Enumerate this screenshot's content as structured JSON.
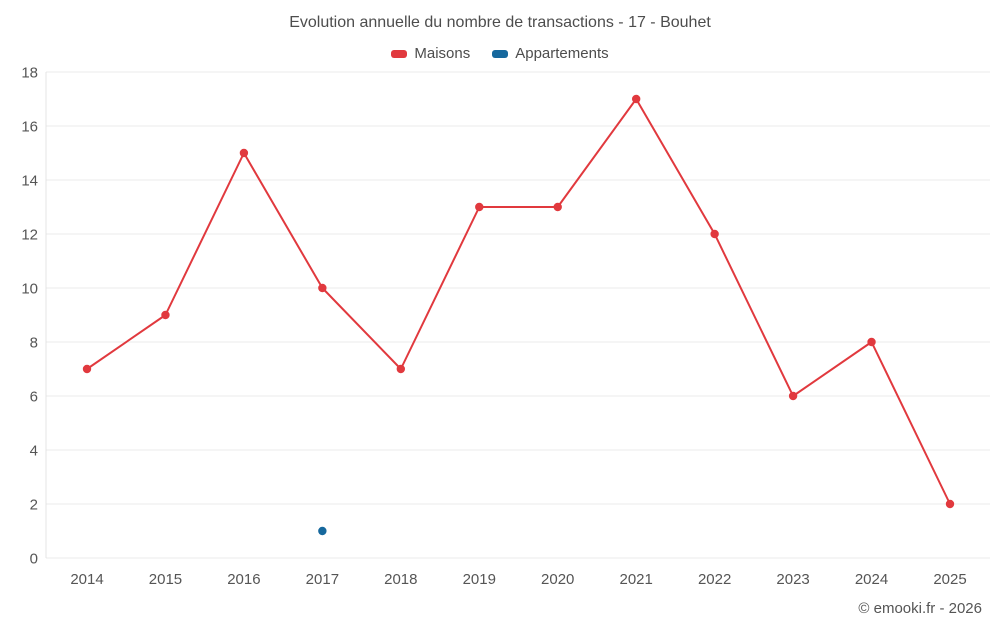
{
  "title": "Evolution annuelle du nombre de transactions - 17 - Bouhet",
  "legend": [
    {
      "label": "Maisons",
      "color": "#e1393e"
    },
    {
      "label": "Appartements",
      "color": "#16689d"
    }
  ],
  "footer": {
    "copyright": "© emooki.fr - 2026"
  },
  "chart_data": {
    "type": "line",
    "title": "Evolution annuelle du nombre de transactions - 17 - Bouhet",
    "x": [
      2014,
      2015,
      2016,
      2017,
      2018,
      2019,
      2020,
      2021,
      2022,
      2023,
      2024,
      2025
    ],
    "series": [
      {
        "name": "Maisons",
        "color": "#e1393e",
        "values": [
          7,
          9,
          15,
          10,
          7,
          13,
          13,
          17,
          12,
          6,
          8,
          2
        ]
      },
      {
        "name": "Appartements",
        "color": "#16689d",
        "values": [
          null,
          null,
          null,
          1,
          null,
          null,
          null,
          null,
          null,
          null,
          null,
          null
        ]
      }
    ],
    "ylim": [
      0,
      18
    ],
    "ytick_step": 2,
    "grid": true,
    "legend_position": "top",
    "xlabel": "",
    "ylabel": ""
  }
}
